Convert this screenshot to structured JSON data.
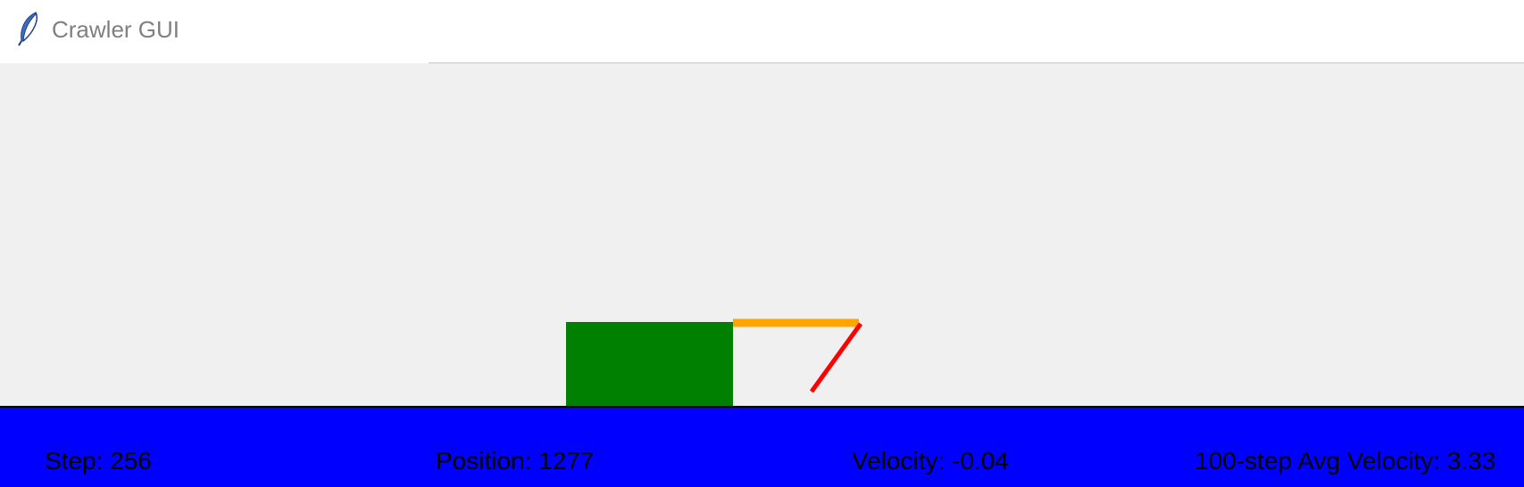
{
  "window": {
    "title": "Crawler GUI",
    "icon": "feather-icon"
  },
  "simulation": {
    "body_color": "#008000",
    "arm_color": "#ffa500",
    "hand_color": "#ff0000",
    "ground_color": "#0000ff",
    "background_color": "#f0f0f0"
  },
  "stats": {
    "step": "Step: 256",
    "position": "Position: 1277",
    "velocity": "Velocity: -0.04",
    "avg_velocity": "100-step Avg Velocity: 3.33"
  }
}
